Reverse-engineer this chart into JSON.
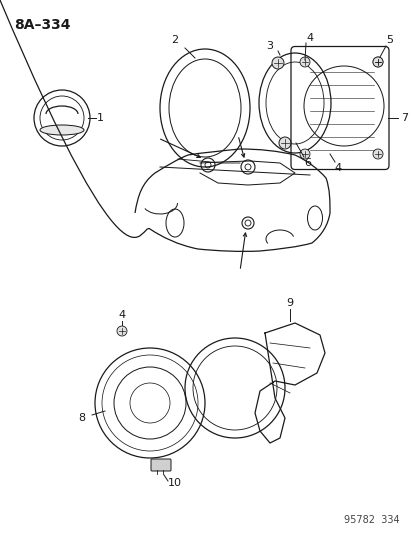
{
  "title": "8A–334",
  "footer": "95782  334",
  "bg_color": "#ffffff",
  "line_color": "#1a1a1a",
  "fig_width": 4.14,
  "fig_height": 5.33,
  "dpi": 100
}
